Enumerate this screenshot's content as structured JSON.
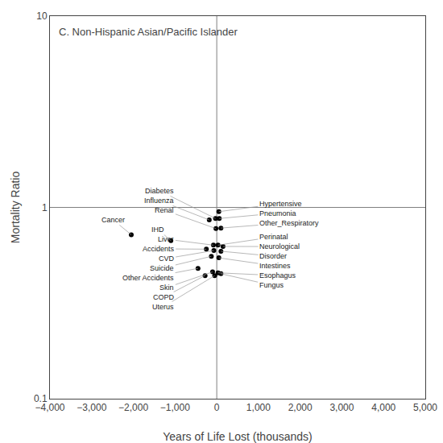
{
  "chart_data": {
    "type": "scatter",
    "title": "C. Non-Hispanic Asian/Pacific Islander",
    "xlabel": "Years of Life Lost (thousands)",
    "ylabel": "Mortality Ratio",
    "labels": [
      "Cancer",
      "IHD",
      "Hypertensive",
      "Diabetes",
      "Pneumonia",
      "Influenza",
      "Other_Respiratory",
      "Renal",
      "Liver",
      "Perinatal",
      "Neurological",
      "Accidents",
      "CVD",
      "Disorder",
      "Suicide",
      "Intestines",
      "Other Accidents",
      "Skin",
      "Esophagus",
      "Fungus",
      "COPD",
      "Uterus"
    ],
    "x": [
      -2050,
      -1100,
      50,
      -30,
      60,
      -180,
      100,
      -20,
      -80,
      30,
      150,
      -250,
      -70,
      100,
      -130,
      50,
      -450,
      -100,
      30,
      100,
      -280,
      -50
    ],
    "values": [
      0.72,
      0.67,
      0.95,
      0.875,
      0.875,
      0.86,
      0.78,
      0.775,
      0.635,
      0.635,
      0.625,
      0.605,
      0.595,
      0.59,
      0.555,
      0.545,
      0.48,
      0.46,
      0.455,
      0.45,
      0.44,
      0.44
    ],
    "color": "#000000",
    "log": "y",
    "xlim": [
      -4000,
      5000
    ],
    "ylim": [
      0.1,
      10
    ],
    "xticks": [
      {
        "value": -4000,
        "label": "−4,000"
      },
      {
        "value": -3000,
        "label": "−3,000"
      },
      {
        "value": -2000,
        "label": "−2,000"
      },
      {
        "value": -1000,
        "label": "−1,000"
      },
      0,
      {
        "value": 1000,
        "label": "1,000"
      },
      {
        "value": 2000,
        "label": "2,000"
      },
      {
        "value": 3000,
        "label": "3,000"
      },
      {
        "value": 4000,
        "label": "4,000"
      },
      {
        "value": 5000,
        "label": "5,000"
      }
    ],
    "yticks": [
      0.1,
      1,
      10
    ],
    "grid": false,
    "reference_lines": {
      "x": 0,
      "y": 1
    }
  }
}
